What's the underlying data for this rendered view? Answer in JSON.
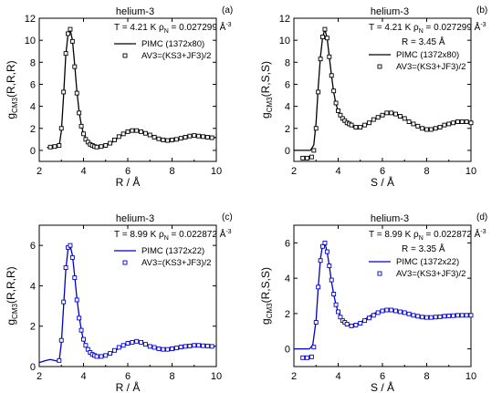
{
  "chart_data": [
    {
      "type": "line",
      "panel_label": "(a)",
      "title": "helium-3",
      "conditions": {
        "temperature": "T = 4.21 K",
        "density_symbol": "ρ",
        "density_sub": "N",
        "density_value": "= 0.027299 Å",
        "density_exp": "-3"
      },
      "extra_label": "",
      "xlabel": "R / Å",
      "ylabel": {
        "main": "g",
        "sub": "CM3",
        "args": "(R,R,R)"
      },
      "xlim": [
        2,
        10
      ],
      "ylim": [
        -1,
        12
      ],
      "xticks": [
        2,
        4,
        6,
        8,
        10
      ],
      "yticks": [
        0,
        2,
        4,
        6,
        8,
        10,
        12
      ],
      "color": "#000000",
      "legend": [
        "PIMC (1372x80)",
        "AV3=(KS3+JF3)/2"
      ],
      "series": [
        {
          "name": "PIMC (1372x80)",
          "style": "line",
          "x": [
            2.35,
            2.5,
            2.7,
            2.9,
            3.0,
            3.1,
            3.2,
            3.3,
            3.4,
            3.5,
            3.6,
            3.7,
            3.8,
            3.9,
            4.0,
            4.2,
            4.4,
            4.6,
            4.8,
            5.0,
            5.3,
            5.6,
            6.0,
            6.3,
            6.5,
            6.8,
            7.0,
            7.4,
            7.8,
            8.2,
            8.6,
            9.0,
            9.4,
            9.8,
            10.0
          ],
          "y": [
            0.25,
            0.3,
            0.35,
            0.35,
            1.8,
            5.0,
            8.7,
            10.5,
            11.0,
            10.0,
            7.8,
            5.4,
            3.5,
            2.3,
            1.5,
            0.8,
            0.45,
            0.3,
            0.3,
            0.4,
            0.75,
            1.2,
            1.7,
            1.85,
            1.8,
            1.6,
            1.4,
            1.05,
            0.9,
            0.95,
            1.15,
            1.35,
            1.3,
            1.2,
            1.15
          ]
        },
        {
          "name": "AV3=(KS3+JF3)/2",
          "style": "markers",
          "x": [
            2.5,
            2.7,
            2.9,
            3.0,
            3.1,
            3.2,
            3.3,
            3.4,
            3.5,
            3.6,
            3.7,
            3.8,
            3.9,
            4.0,
            4.1,
            4.2,
            4.3,
            4.4,
            4.5,
            4.6,
            4.8,
            5.0,
            5.2,
            5.4,
            5.6,
            5.8,
            6.0,
            6.2,
            6.4,
            6.6,
            6.8,
            7.0,
            7.2,
            7.4,
            7.6,
            7.8,
            8.0,
            8.2,
            8.4,
            8.6,
            8.8,
            9.0,
            9.2,
            9.4,
            9.6,
            9.8
          ],
          "y": [
            0.3,
            0.35,
            0.45,
            2.0,
            5.3,
            8.8,
            10.6,
            11.0,
            9.9,
            7.6,
            5.2,
            3.4,
            2.2,
            1.5,
            1.0,
            0.75,
            0.55,
            0.45,
            0.35,
            0.3,
            0.35,
            0.45,
            0.65,
            0.95,
            1.25,
            1.5,
            1.7,
            1.8,
            1.8,
            1.7,
            1.55,
            1.4,
            1.2,
            1.05,
            0.95,
            0.9,
            0.95,
            1.0,
            1.1,
            1.2,
            1.3,
            1.35,
            1.3,
            1.25,
            1.2,
            1.15
          ]
        }
      ]
    },
    {
      "type": "line",
      "panel_label": "(b)",
      "title": "helium-3",
      "conditions": {
        "temperature": "T = 4.21 K",
        "density_symbol": "ρ",
        "density_sub": "N",
        "density_value": "= 0.027299 Å",
        "density_exp": "-3"
      },
      "extra_label": "R = 3.45 Å",
      "xlabel": "S / Å",
      "ylabel": {
        "main": "g",
        "sub": "CM3",
        "args": "(R,S,S)"
      },
      "xlim": [
        2,
        10
      ],
      "ylim": [
        -1,
        12
      ],
      "xticks": [
        2,
        4,
        6,
        8,
        10
      ],
      "yticks": [
        0,
        2,
        4,
        6,
        8,
        10,
        12
      ],
      "color": "#000000",
      "legend": [
        "PIMC (1372x80)",
        "AV3=(KS3+JF3)/2"
      ],
      "series": [
        {
          "name": "PIMC (1372x80)",
          "style": "line",
          "x": [
            2.0,
            2.4,
            2.6,
            2.75,
            2.9,
            3.0,
            3.1,
            3.2,
            3.3,
            3.4,
            3.5,
            3.6,
            3.7,
            3.8,
            3.9,
            4.0,
            4.2,
            4.4,
            4.6,
            4.8,
            5.0,
            5.3,
            5.6,
            6.0,
            6.3,
            6.5,
            6.8,
            7.0,
            7.4,
            7.8,
            8.2,
            8.6,
            9.0,
            9.4,
            9.8,
            10.0
          ],
          "y": [
            0,
            0,
            0,
            0,
            0.5,
            2.5,
            5.8,
            8.5,
            10.3,
            11.0,
            10.2,
            8.5,
            6.8,
            5.3,
            4.2,
            3.6,
            2.8,
            2.5,
            2.2,
            2.0,
            2.1,
            2.4,
            2.8,
            3.2,
            3.4,
            3.35,
            3.1,
            2.9,
            2.4,
            2.0,
            1.9,
            2.1,
            2.4,
            2.6,
            2.6,
            2.5
          ]
        },
        {
          "name": "AV3=(KS3+JF3)/2",
          "style": "markers",
          "x": [
            2.4,
            2.6,
            2.8,
            2.9,
            3.0,
            3.1,
            3.2,
            3.3,
            3.4,
            3.5,
            3.6,
            3.7,
            3.8,
            3.9,
            4.0,
            4.1,
            4.2,
            4.3,
            4.4,
            4.5,
            4.6,
            4.8,
            5.0,
            5.2,
            5.4,
            5.6,
            5.8,
            6.0,
            6.2,
            6.4,
            6.6,
            6.8,
            7.0,
            7.2,
            7.4,
            7.6,
            7.8,
            8.0,
            8.2,
            8.4,
            8.6,
            8.8,
            9.0,
            9.2,
            9.4,
            9.6,
            9.8,
            10.0
          ],
          "y": [
            -0.7,
            -0.7,
            -0.6,
            0.0,
            2.0,
            5.3,
            8.3,
            10.3,
            11.0,
            10.2,
            8.5,
            6.8,
            5.4,
            4.3,
            3.6,
            3.2,
            2.9,
            2.7,
            2.5,
            2.4,
            2.3,
            2.1,
            2.1,
            2.3,
            2.5,
            2.8,
            3.0,
            3.2,
            3.4,
            3.4,
            3.3,
            3.1,
            2.9,
            2.6,
            2.4,
            2.2,
            2.0,
            1.9,
            1.9,
            2.0,
            2.1,
            2.3,
            2.4,
            2.5,
            2.6,
            2.6,
            2.6,
            2.5
          ]
        }
      ]
    },
    {
      "type": "line",
      "panel_label": "(c)",
      "title": "helium-3",
      "conditions": {
        "temperature": "T = 8.99 K",
        "density_symbol": "ρ",
        "density_sub": "N",
        "density_value": "= 0.022872 Å",
        "density_exp": "-3"
      },
      "extra_label": "",
      "xlabel": "R / Å",
      "ylabel": {
        "main": "g",
        "sub": "CM3",
        "args": "(R,R,R)"
      },
      "xlim": [
        2,
        10
      ],
      "ylim": [
        0,
        7
      ],
      "xticks": [
        2,
        4,
        6,
        8,
        10
      ],
      "yticks": [
        0,
        2,
        4,
        6
      ],
      "color": "#0000cc",
      "legend": [
        "PIMC (1372x22)",
        "AV3=(KS3+JF3)/2"
      ],
      "series": [
        {
          "name": "PIMC (1372x22)",
          "style": "line",
          "x": [
            2.0,
            2.3,
            2.5,
            2.7,
            2.9,
            3.0,
            3.1,
            3.2,
            3.3,
            3.4,
            3.5,
            3.6,
            3.7,
            3.8,
            3.9,
            4.0,
            4.2,
            4.4,
            4.6,
            4.8,
            5.0,
            5.3,
            5.6,
            6.0,
            6.3,
            6.5,
            6.8,
            7.0,
            7.4,
            7.8,
            8.2,
            8.6,
            9.0,
            9.4,
            9.8,
            10.0
          ],
          "y": [
            0.2,
            0.3,
            0.35,
            0.3,
            0.25,
            1.2,
            3.0,
            4.8,
            5.8,
            6.0,
            5.5,
            4.5,
            3.4,
            2.5,
            1.8,
            1.3,
            0.8,
            0.6,
            0.5,
            0.5,
            0.55,
            0.7,
            0.9,
            1.15,
            1.25,
            1.2,
            1.1,
            1.0,
            0.85,
            0.8,
            0.85,
            0.95,
            1.05,
            1.05,
            1.02,
            1.0
          ]
        },
        {
          "name": "AV3=(KS3+JF3)/2",
          "style": "markers",
          "x": [
            2.9,
            3.0,
            3.1,
            3.2,
            3.3,
            3.4,
            3.5,
            3.6,
            3.7,
            3.8,
            3.9,
            4.0,
            4.1,
            4.2,
            4.3,
            4.4,
            4.5,
            4.6,
            4.8,
            5.0,
            5.2,
            5.4,
            5.6,
            5.8,
            6.0,
            6.2,
            6.4,
            6.6,
            6.8,
            7.0,
            7.2,
            7.4,
            7.6,
            7.8,
            8.0,
            8.2,
            8.4,
            8.6,
            8.8,
            9.0,
            9.2,
            9.4,
            9.6,
            9.8
          ],
          "y": [
            0.3,
            1.3,
            3.2,
            4.9,
            5.9,
            6.0,
            5.4,
            4.4,
            3.3,
            2.4,
            1.8,
            1.35,
            1.05,
            0.85,
            0.7,
            0.6,
            0.55,
            0.5,
            0.5,
            0.55,
            0.65,
            0.8,
            0.95,
            1.05,
            1.15,
            1.2,
            1.25,
            1.2,
            1.1,
            1.0,
            0.95,
            0.88,
            0.85,
            0.85,
            0.88,
            0.92,
            0.97,
            1.0,
            1.02,
            1.05,
            1.05,
            1.03,
            1.02,
            1.0
          ]
        }
      ]
    },
    {
      "type": "line",
      "panel_label": "(d)",
      "title": "helium-3",
      "conditions": {
        "temperature": "T = 8.99 K",
        "density_symbol": "ρ",
        "density_sub": "N",
        "density_value": "= 0.022872 Å",
        "density_exp": "-3"
      },
      "extra_label": "R = 3.35 Å",
      "xlabel": "S / Å",
      "ylabel": {
        "main": "g",
        "sub": "CM3",
        "args": "(R,S,S)"
      },
      "xlim": [
        2,
        10
      ],
      "ylim": [
        -1,
        7
      ],
      "xticks": [
        2,
        4,
        6,
        8,
        10
      ],
      "yticks": [
        0,
        2,
        4,
        6
      ],
      "color": "#0000cc",
      "legend": [
        "PIMC (1372x22)",
        "AV3=(KS3+JF3)/2"
      ],
      "series": [
        {
          "name": "PIMC (1372x22)",
          "style": "line",
          "x": [
            2.0,
            2.4,
            2.7,
            2.85,
            3.0,
            3.1,
            3.2,
            3.3,
            3.4,
            3.5,
            3.6,
            3.7,
            3.8,
            3.9,
            4.0,
            4.2,
            4.4,
            4.6,
            4.8,
            5.0,
            5.3,
            5.6,
            6.0,
            6.3,
            6.5,
            6.8,
            7.0,
            7.4,
            7.8,
            8.2,
            8.6,
            9.0,
            9.4,
            9.8,
            10.0
          ],
          "y": [
            0,
            0,
            0,
            0.2,
            1.6,
            3.5,
            5.1,
            5.9,
            6.0,
            5.5,
            4.7,
            3.8,
            3.1,
            2.5,
            2.1,
            1.6,
            1.4,
            1.3,
            1.35,
            1.5,
            1.75,
            2.0,
            2.2,
            2.25,
            2.2,
            2.1,
            2.0,
            1.85,
            1.75,
            1.75,
            1.8,
            1.85,
            1.9,
            1.9,
            1.9
          ]
        },
        {
          "name": "AV3=(KS3+JF3)/2",
          "style": "markers",
          "x": [
            2.4,
            2.6,
            2.8,
            2.9,
            3.0,
            3.1,
            3.2,
            3.3,
            3.4,
            3.5,
            3.6,
            3.7,
            3.8,
            3.9,
            4.0,
            4.1,
            4.2,
            4.3,
            4.4,
            4.6,
            4.8,
            5.0,
            5.2,
            5.4,
            5.6,
            5.8,
            6.0,
            6.2,
            6.4,
            6.6,
            6.8,
            7.0,
            7.2,
            7.4,
            7.6,
            7.8,
            8.0,
            8.2,
            8.4,
            8.6,
            8.8,
            9.0,
            9.2,
            9.4,
            9.6,
            9.8,
            10.0
          ],
          "y": [
            -0.5,
            -0.5,
            -0.45,
            0.1,
            1.5,
            3.5,
            5.0,
            5.8,
            6.0,
            5.5,
            4.7,
            3.9,
            3.1,
            2.5,
            2.1,
            1.8,
            1.6,
            1.5,
            1.4,
            1.3,
            1.35,
            1.45,
            1.6,
            1.75,
            1.9,
            2.05,
            2.15,
            2.2,
            2.2,
            2.15,
            2.1,
            2.05,
            1.98,
            1.9,
            1.85,
            1.8,
            1.78,
            1.78,
            1.8,
            1.82,
            1.85,
            1.87,
            1.88,
            1.9,
            1.9,
            1.9,
            1.9
          ]
        }
      ]
    }
  ]
}
